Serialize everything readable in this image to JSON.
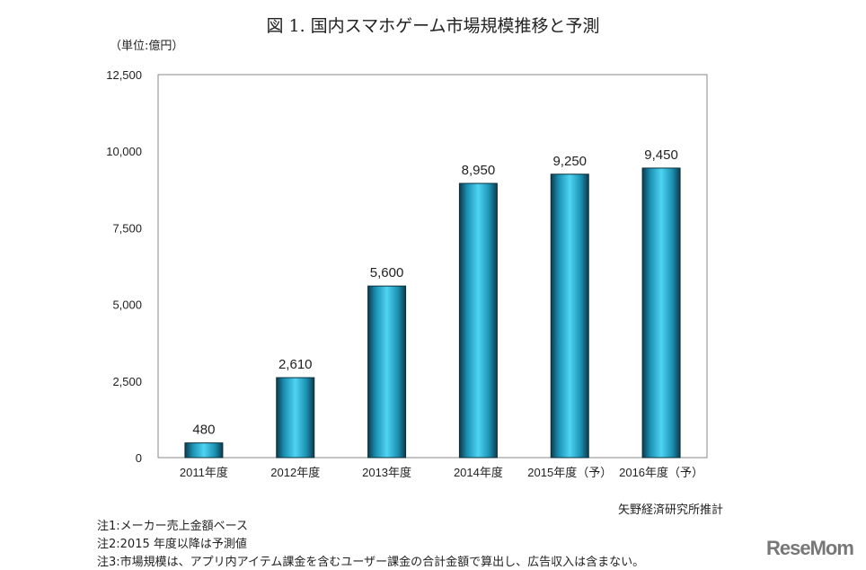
{
  "chart_data": {
    "type": "bar",
    "title": "図 1. 国内スマホゲーム市場規模推移と予測",
    "ylabel": "（単位:億円）",
    "categories": [
      "2011年度",
      "2012年度",
      "2013年度",
      "2014年度",
      "2015年度（予）",
      "2016年度（予）"
    ],
    "values": [
      480,
      2610,
      5600,
      8950,
      9250,
      9450
    ],
    "data_labels": [
      "480",
      "2,610",
      "5,600",
      "8,950",
      "9,250",
      "9,450"
    ],
    "ylim": [
      0,
      12500
    ],
    "yticks": [
      0,
      2500,
      5000,
      7500,
      10000,
      12500
    ],
    "ytick_labels": [
      "0",
      "2,500",
      "5,000",
      "7,500",
      "10,000",
      "12,500"
    ],
    "grid": false,
    "bar_color": "#3cc4e8"
  },
  "source": "矢野経済研究所推計",
  "notes": [
    "注1:メーカー売上金額ベース",
    "注2:2015 年度以降は予測値",
    "注3:市場規模は、アプリ内アイテム課金を含むユーザー課金の合計金額で算出し、広告収入は含まない。"
  ],
  "logo": "ReseMom"
}
